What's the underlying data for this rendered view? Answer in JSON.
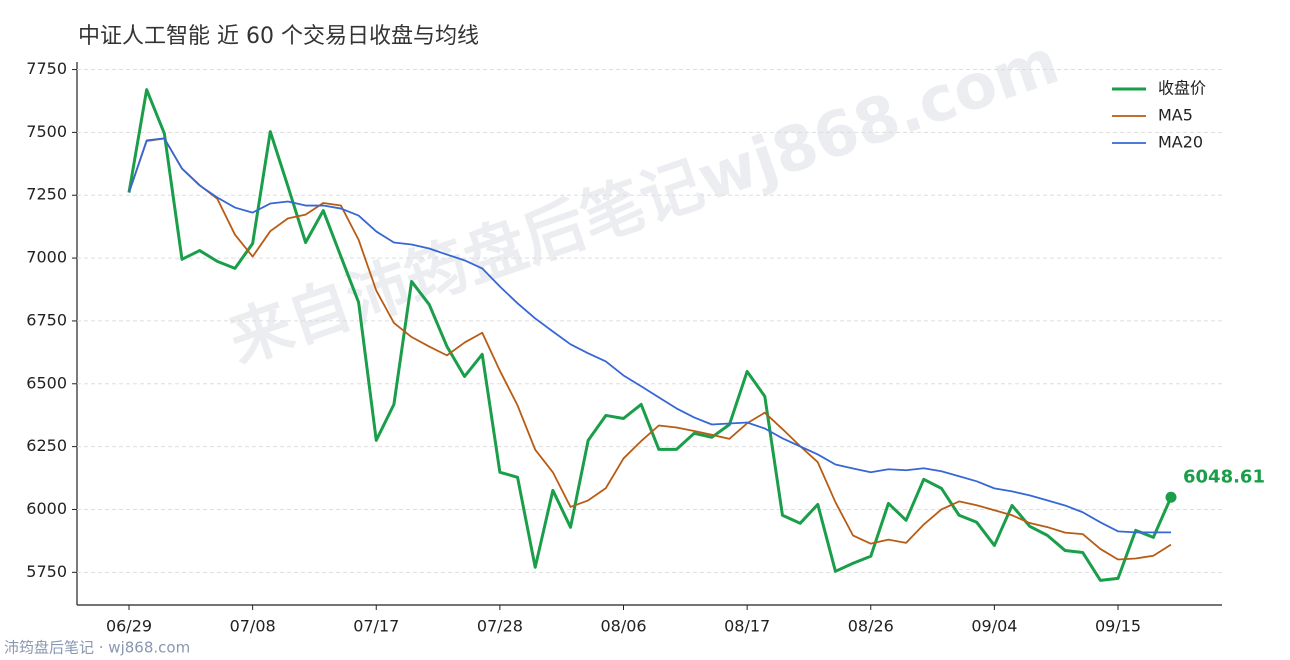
{
  "chart_data": {
    "type": "line",
    "title": "中证人工智能 近 60 个交易日收盘与均线",
    "watermark": "来自沛筠盘后笔记wj868.com",
    "footer": "沛筠盘后笔记 · wj868.com",
    "categories": [
      "06/29",
      null,
      null,
      null,
      null,
      null,
      null,
      "07/08",
      null,
      null,
      null,
      null,
      null,
      null,
      "07/17",
      null,
      null,
      null,
      null,
      null,
      null,
      "07/28",
      null,
      null,
      null,
      null,
      null,
      null,
      "08/06",
      null,
      null,
      null,
      null,
      null,
      null,
      "08/17",
      null,
      null,
      null,
      null,
      null,
      null,
      "08/26",
      null,
      null,
      null,
      null,
      null,
      null,
      "09/04",
      null,
      null,
      null,
      null,
      null,
      null,
      "09/15",
      null,
      null,
      null
    ],
    "series": [
      {
        "name": "收盘价",
        "color": "#1a9e4a",
        "width": 3,
        "values": [
          7261,
          7670,
          7496,
          6995,
          7030,
          6987,
          6959,
          7058,
          7503,
          7285,
          7062,
          7189,
          7006,
          6824,
          6275,
          6418,
          6907,
          6815,
          6649,
          6529,
          6617,
          6148,
          6128,
          5770,
          6076,
          5929,
          6275,
          6374,
          6362,
          6418,
          6239,
          6239,
          6303,
          6287,
          6338,
          6549,
          6450,
          5977,
          5945,
          6020,
          5754,
          5786,
          5814,
          6024,
          5957,
          6120,
          6084,
          5977,
          5949,
          5857,
          6016,
          5933,
          5897,
          5837,
          5829,
          5718,
          5726,
          5917,
          5889,
          6048.61
        ]
      },
      {
        "name": "MA5",
        "color": "#b85c14",
        "width": 1.8,
        "values": [
          7261,
          7466,
          7476,
          7356,
          7290,
          7236,
          7093,
          7006,
          7107,
          7158,
          7173,
          7219,
          7209,
          7073,
          6871,
          6742,
          6686,
          6648,
          6613,
          6664,
          6703,
          6552,
          6414,
          6238,
          6148,
          6010,
          6036,
          6085,
          6203,
          6272,
          6334,
          6326,
          6312,
          6297,
          6281,
          6343,
          6385,
          6320,
          6252,
          6188,
          6029,
          5896,
          5864,
          5880,
          5867,
          5940,
          6000,
          6032,
          6017,
          5997,
          5977,
          5946,
          5930,
          5908,
          5902,
          5843,
          5801,
          5805,
          5816,
          5860
        ]
      },
      {
        "name": "MA20",
        "color": "#3567d6",
        "width": 1.8,
        "values": [
          7261,
          7468,
          7476,
          7356,
          7289,
          7241,
          7201,
          7181,
          7217,
          7225,
          7209,
          7209,
          7197,
          7169,
          7106,
          7062,
          7054,
          7038,
          7014,
          6991,
          6959,
          6887,
          6820,
          6760,
          6708,
          6657,
          6621,
          6589,
          6533,
          6490,
          6446,
          6402,
          6366,
          6338,
          6342,
          6346,
          6322,
          6283,
          6251,
          6219,
          6179,
          6163,
          6148,
          6160,
          6156,
          6164,
          6152,
          6132,
          6112,
          6084,
          6072,
          6056,
          6036,
          6016,
          5989,
          5949,
          5913,
          5909,
          5909,
          5909
        ]
      }
    ],
    "ylim": [
      5620,
      7780
    ],
    "yticks": [
      5750,
      6000,
      6250,
      6500,
      6750,
      7000,
      7250,
      7500,
      7750
    ],
    "grid": true,
    "legend": "upper right"
  }
}
